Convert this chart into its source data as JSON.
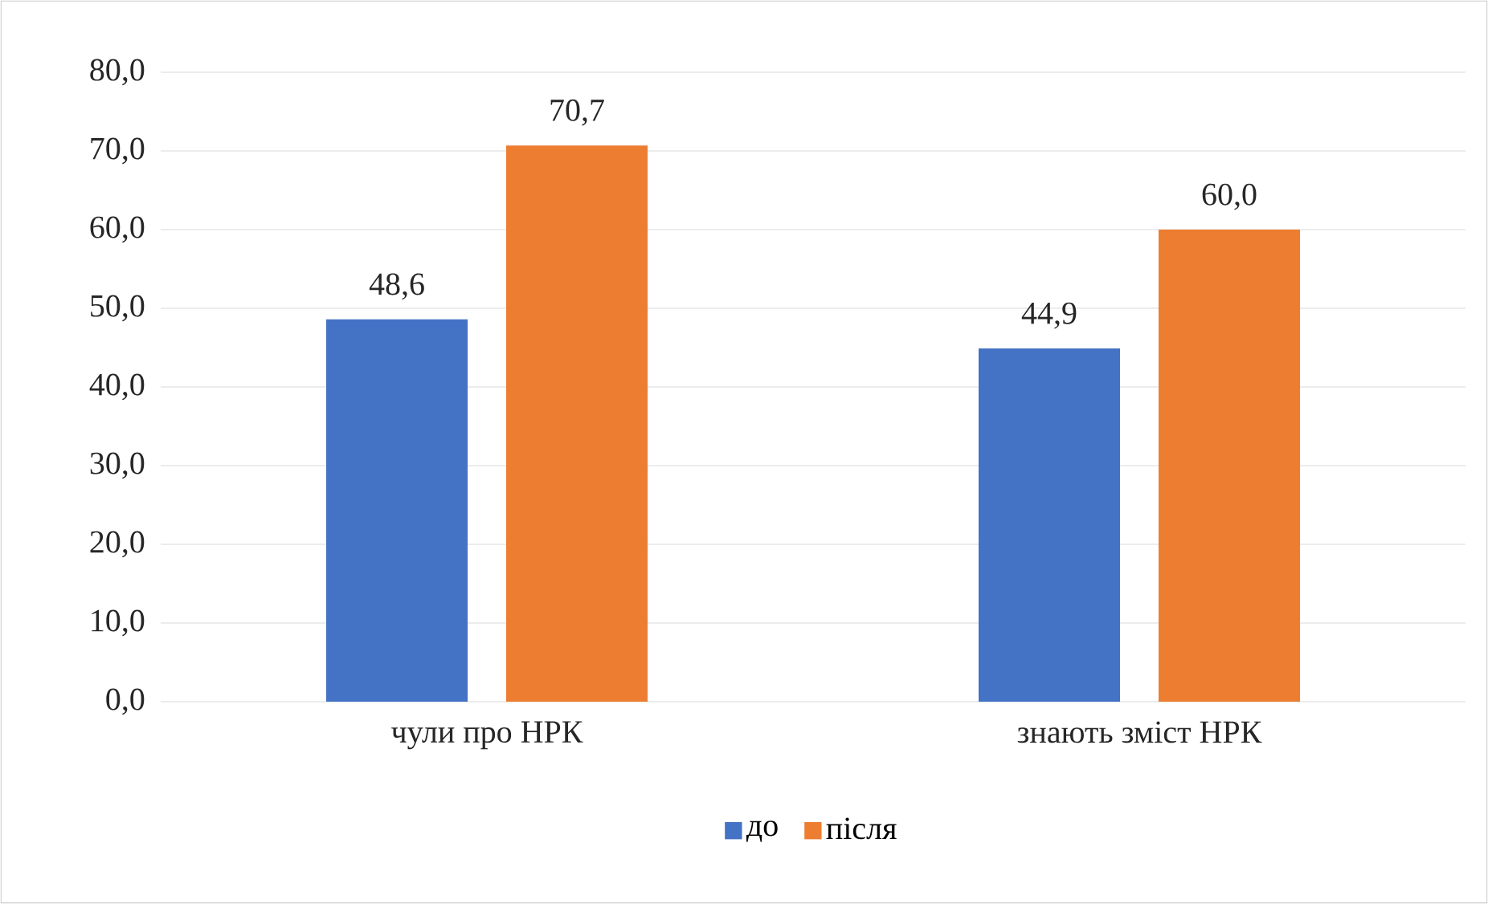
{
  "chart_data": {
    "type": "bar",
    "categories": [
      "чули про НРК",
      "знають зміст НРК"
    ],
    "series": [
      {
        "name": "до",
        "color": "#4472c4",
        "values": [
          48.6,
          44.9
        ],
        "value_labels": [
          "48,6",
          "44,9"
        ]
      },
      {
        "name": "після",
        "color": "#ed7d31",
        "values": [
          70.7,
          60.0
        ],
        "value_labels": [
          "70,7",
          "60,0"
        ]
      }
    ],
    "ylim": [
      0,
      80
    ],
    "yticks": [
      {
        "value": 0,
        "label": "0,0"
      },
      {
        "value": 10,
        "label": "10,0"
      },
      {
        "value": 20,
        "label": "20,0"
      },
      {
        "value": 30,
        "label": "30,0"
      },
      {
        "value": 40,
        "label": "40,0"
      },
      {
        "value": 50,
        "label": "50,0"
      },
      {
        "value": 60,
        "label": "60,0"
      },
      {
        "value": 70,
        "label": "70,0"
      },
      {
        "value": 80,
        "label": "80,0"
      }
    ],
    "grid": "y",
    "legend": "bottom"
  }
}
